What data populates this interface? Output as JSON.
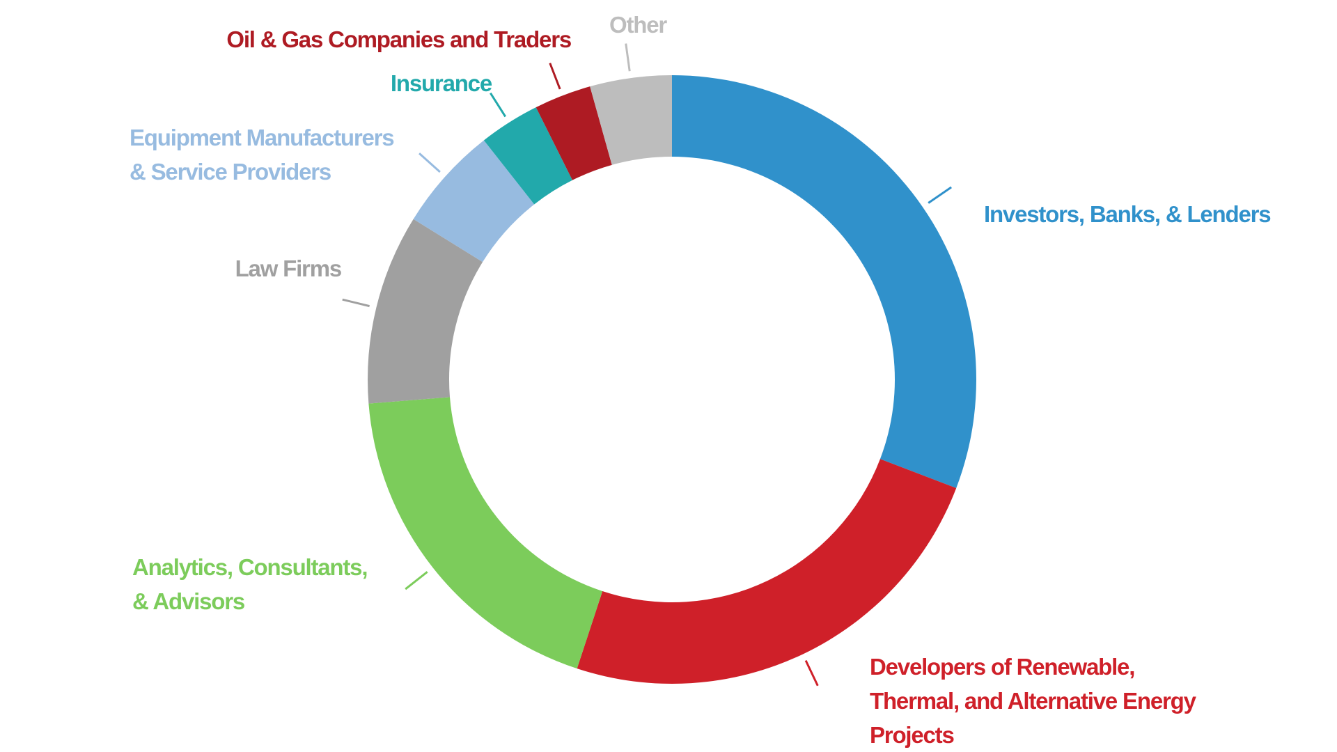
{
  "chart_data": {
    "type": "pie",
    "variant": "donut",
    "title": "",
    "legend": "none",
    "start_angle_deg": 0,
    "direction": "clockwise",
    "slices": [
      {
        "label_lines": [
          "Investors, Banks, & Lenders"
        ],
        "value": 30.5,
        "color": "#3091cb"
      },
      {
        "label_lines": [
          "Developers of Renewable,",
          "Thermal, and Alternative Energy",
          "Projects"
        ],
        "value": 24.0,
        "color": "#cf2029"
      },
      {
        "label_lines": [
          "Analytics, Consultants,",
          "& Advisors"
        ],
        "value": 18.5,
        "color": "#7ccc5b"
      },
      {
        "label_lines": [
          "Law Firms"
        ],
        "value": 10.0,
        "color": "#a0a0a0"
      },
      {
        "label_lines": [
          "Equipment Manufacturers",
          "& Service Providers"
        ],
        "value": 5.5,
        "color": "#97bbe0"
      },
      {
        "label_lines": [
          "Insurance"
        ],
        "value": 3.2,
        "color": "#22a9ab"
      },
      {
        "label_lines": [
          "Oil & Gas Companies and Traders"
        ],
        "value": 3.0,
        "color": "#ae1b23"
      },
      {
        "label_lines": [
          "Other"
        ],
        "value": 4.3,
        "color": "#bdbdbd"
      }
    ]
  }
}
